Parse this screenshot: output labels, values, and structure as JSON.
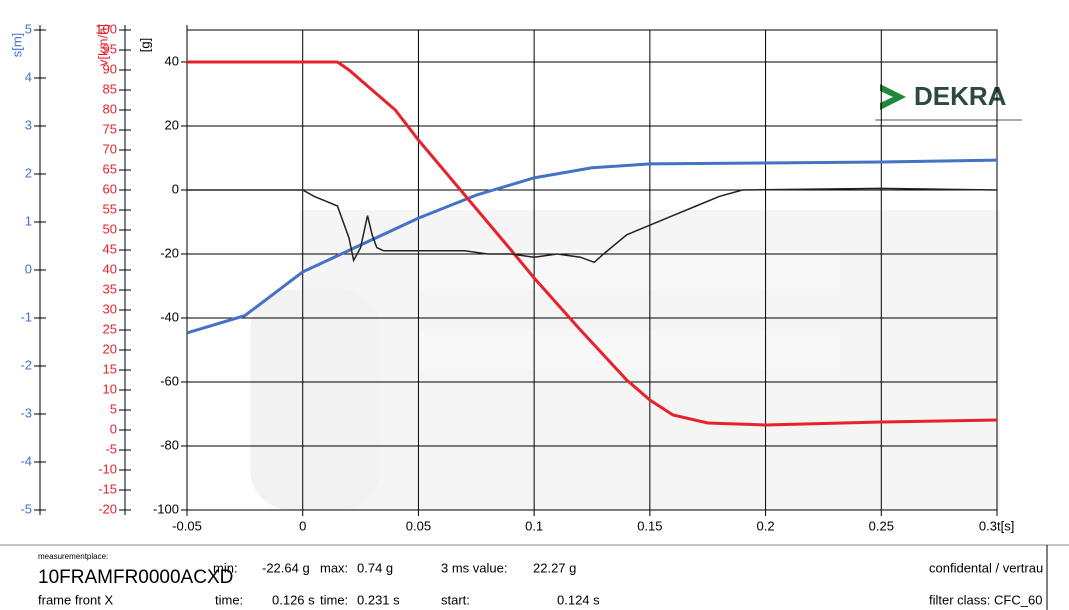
{
  "chart_data": {
    "type": "line",
    "xlim": [
      -0.05,
      0.3
    ],
    "xticks": [
      -0.05,
      0,
      0.05,
      0.1,
      0.15,
      0.2,
      0.25,
      0.3
    ],
    "xlabel": "t[s]",
    "ylim": [
      -100,
      50
    ],
    "yticks": [
      -100,
      -80,
      -60,
      -40,
      -20,
      0,
      20,
      40
    ],
    "ylabel": "[g]",
    "y2lim": [
      -20,
      100
    ],
    "y2ticks": [
      -20,
      -15,
      -10,
      -5,
      0,
      5,
      10,
      15,
      20,
      25,
      30,
      35,
      40,
      45,
      50,
      55,
      60,
      65,
      70,
      75,
      80,
      85,
      90,
      95,
      100
    ],
    "y2label": "v[km/h]",
    "y2color": "#e8222a",
    "y3lim": [
      -5,
      5
    ],
    "y3ticks": [
      -5,
      -4,
      -3,
      -2,
      -1,
      0,
      1,
      2,
      3,
      4,
      5
    ],
    "y3label": "s[m]",
    "y3color": "#4472c4",
    "grid": true,
    "series": [
      {
        "color": "#4472c4",
        "axis": "y3",
        "x": [
          -0.05,
          -0.025,
          0,
          0.025,
          0.05,
          0.075,
          0.1,
          0.125,
          0.15,
          0.2,
          0.25,
          0.3
        ],
        "values": [
          -1.31,
          -0.95,
          -0.04,
          0.52,
          1.08,
          1.56,
          1.92,
          2.13,
          2.21,
          2.23,
          2.25,
          2.29
        ]
      },
      {
        "color": "#e8222a",
        "axis": "y2",
        "x": [
          -0.05,
          0.015,
          0.02,
          0.03,
          0.04,
          0.05,
          0.07,
          0.09,
          0.1,
          0.12,
          0.14,
          0.15,
          0.16,
          0.175,
          0.2,
          0.25,
          0.3
        ],
        "values": [
          92,
          92,
          90,
          85,
          80,
          72.5,
          58.75,
          45,
          38,
          25,
          12.5,
          7.5,
          3.75,
          1.75,
          1.25,
          2,
          2.5
        ]
      },
      {
        "color": "#222222",
        "axis": "y",
        "x": [
          -0.05,
          0,
          0.005,
          0.01,
          0.015,
          0.02,
          0.022,
          0.025,
          0.028,
          0.03,
          0.032,
          0.035,
          0.05,
          0.07,
          0.08,
          0.09,
          0.1,
          0.11,
          0.12,
          0.126,
          0.13,
          0.14,
          0.15,
          0.16,
          0.17,
          0.18,
          0.19,
          0.25,
          0.3
        ],
        "values": [
          0,
          0,
          -2,
          -3.5,
          -5,
          -15,
          -22,
          -18,
          -8,
          -14,
          -18,
          -19,
          -19,
          -19,
          -20,
          -20,
          -21,
          -20,
          -21,
          -22.6,
          -20,
          -14,
          -11,
          -8,
          -5,
          -2,
          0,
          0.5,
          0
        ]
      }
    ]
  },
  "logo": "DEKRA",
  "info": [
    "measurementplace:",
    "10FRAMFR0000ACXD",
    "frame front X",
    "min:",
    "-22.64 g",
    "max:",
    "0.74 g",
    "3 ms value:",
    "22.27 g",
    "time:",
    "0.126 s",
    "time:",
    "0.231 s",
    "start:",
    "0.124 s",
    "confidental / vertrau",
    "filter class: CFC_60"
  ]
}
